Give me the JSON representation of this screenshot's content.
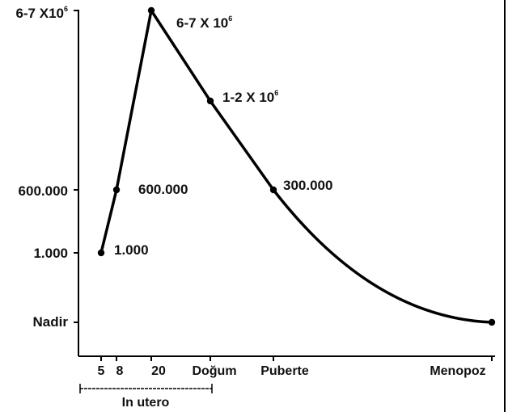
{
  "chart_data": {
    "type": "line",
    "y_tick_labels": [
      {
        "key": "y_top",
        "base": "6-7 X10",
        "sup": "6"
      },
      {
        "key": "y_600k",
        "base": "600.000",
        "sup": ""
      },
      {
        "key": "y_1k",
        "base": "1.000",
        "sup": ""
      },
      {
        "key": "y_nadir",
        "base": "Nadir",
        "sup": ""
      }
    ],
    "x_tick_labels": [
      {
        "key": "x_5",
        "label": "5"
      },
      {
        "key": "x_8",
        "label": "8"
      },
      {
        "key": "x_20",
        "label": "20"
      },
      {
        "key": "x_dogum",
        "label": "Doğum"
      },
      {
        "key": "x_puberte",
        "label": "Puberte"
      },
      {
        "key": "x_menopoz",
        "label": "Menopoz"
      }
    ],
    "range_label": "In utero",
    "points": [
      {
        "x": "x_5",
        "y": "y_1k",
        "label": "1.000",
        "sup": ""
      },
      {
        "x": "x_8",
        "y": "y_600k",
        "label": "600.000",
        "sup": ""
      },
      {
        "x": "x_20",
        "y": "y_top",
        "label": "6-7 X 10",
        "sup": "6"
      },
      {
        "x": "x_dogum",
        "y": "y_mid",
        "label": "1-2 X 10",
        "sup": "6"
      },
      {
        "x": "x_puberte",
        "y": "y_600k",
        "label": "300.000",
        "sup": ""
      },
      {
        "x": "x_menopoz",
        "y": "y_nadir",
        "label": "",
        "sup": ""
      }
    ],
    "grid": false,
    "legend": "none"
  }
}
